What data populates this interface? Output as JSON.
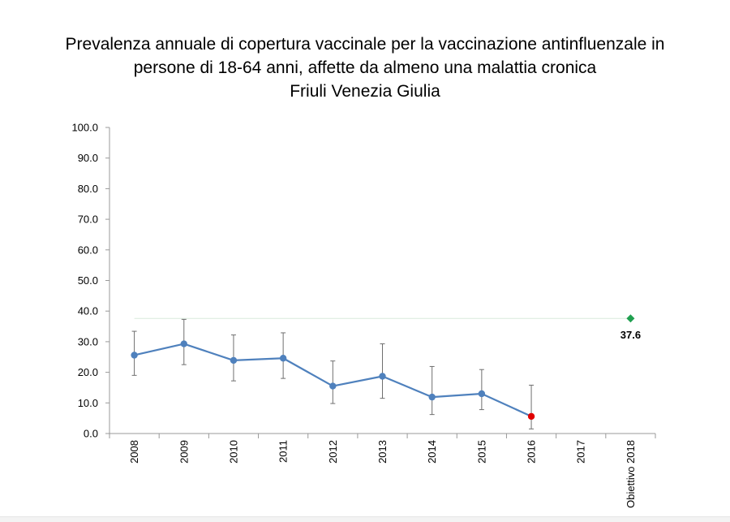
{
  "chart_data": {
    "type": "line",
    "title_lines": [
      "Prevalenza annuale di copertura vaccinale per la vaccinazione antinfluenzale in",
      "persone di 18-64 anni, affette da almeno una malattia cronica",
      "Friuli Venezia Giulia"
    ],
    "categories": [
      "2008",
      "2009",
      "2010",
      "2011",
      "2012",
      "2013",
      "2014",
      "2015",
      "2016",
      "2017",
      "Obiettivo 2018"
    ],
    "values": [
      25.6,
      29.3,
      23.9,
      24.6,
      15.5,
      18.7,
      11.9,
      13.0,
      5.6,
      null,
      null
    ],
    "error_low": [
      19.0,
      22.5,
      17.2,
      18.0,
      9.8,
      11.5,
      6.2,
      7.8,
      1.5,
      null,
      null
    ],
    "error_high": [
      33.4,
      37.3,
      32.2,
      32.9,
      23.7,
      29.3,
      21.9,
      20.9,
      15.8,
      null,
      null
    ],
    "target": {
      "category": "Obiettivo 2018",
      "value": 37.6,
      "label": "37.6"
    },
    "ylim": [
      0,
      100
    ],
    "yticks": [
      "0.0",
      "10.0",
      "20.0",
      "30.0",
      "40.0",
      "50.0",
      "60.0",
      "70.0",
      "80.0",
      "90.0",
      "100.0"
    ],
    "xlabel": "",
    "ylabel": "",
    "grid": false,
    "colors": {
      "line": "#4f81bd",
      "marker": "#4f81bd",
      "last_marker": "#e00000",
      "error_bar": "#6f6f6f",
      "target_marker": "#20a050",
      "target_line": "#d8eadc",
      "axis": "#999999"
    }
  }
}
